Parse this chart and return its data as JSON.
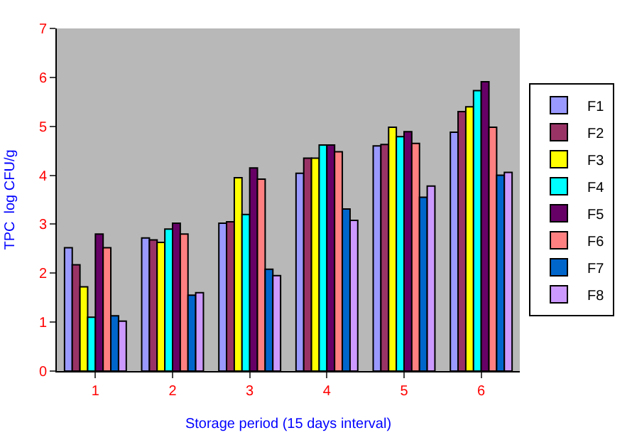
{
  "chart_data": {
    "type": "bar",
    "xlabel": "Storage period (15 days interval)",
    "ylabel": "TPC  log CFU/g",
    "categories": [
      "1",
      "2",
      "3",
      "4",
      "5",
      "6"
    ],
    "series": [
      {
        "name": "F1",
        "color": "#9999ff",
        "values": [
          2.52,
          2.72,
          3.02,
          4.04,
          4.6,
          4.88
        ]
      },
      {
        "name": "F2",
        "color": "#993366",
        "values": [
          2.17,
          2.68,
          3.05,
          4.35,
          4.63,
          5.3
        ]
      },
      {
        "name": "F3",
        "color": "#ffff00",
        "values": [
          1.72,
          2.63,
          3.95,
          4.35,
          4.98,
          5.4
        ]
      },
      {
        "name": "F4",
        "color": "#00ffff",
        "values": [
          1.1,
          2.9,
          3.2,
          4.62,
          4.79,
          5.73
        ]
      },
      {
        "name": "F5",
        "color": "#660066",
        "values": [
          2.8,
          3.02,
          4.15,
          4.62,
          4.89,
          5.91
        ]
      },
      {
        "name": "F6",
        "color": "#ff8080",
        "values": [
          2.52,
          2.8,
          3.92,
          4.48,
          4.65,
          4.98
        ]
      },
      {
        "name": "F7",
        "color": "#0066cc",
        "values": [
          1.13,
          1.55,
          2.08,
          3.31,
          3.55,
          4.0
        ]
      },
      {
        "name": "F8",
        "color": "#cc99ff",
        "values": [
          1.02,
          1.6,
          1.95,
          3.08,
          3.78,
          4.06
        ]
      }
    ],
    "ylim": [
      0,
      7
    ],
    "yticks": [
      0,
      1,
      2,
      3,
      4,
      5,
      6,
      7
    ],
    "grid": false,
    "legend": "right"
  }
}
